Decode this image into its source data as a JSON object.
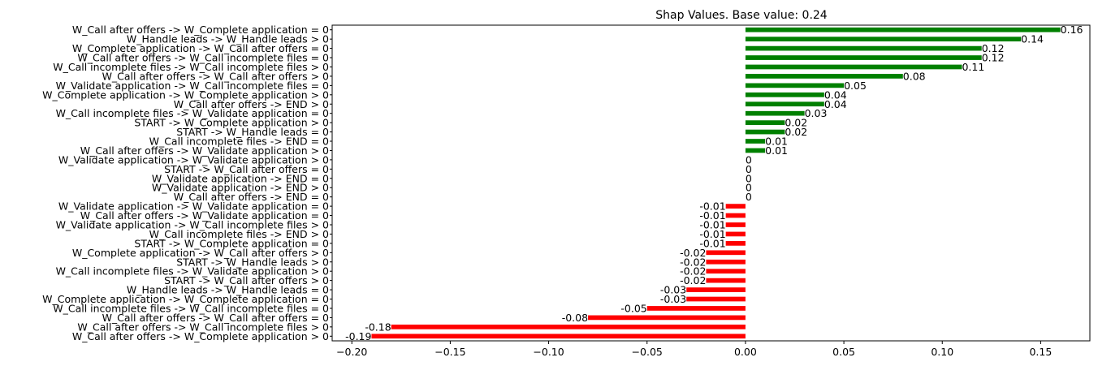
{
  "chart_data": {
    "type": "bar",
    "orientation": "horizontal",
    "title": "Shap Values. Base value: 0.24",
    "xlabel": "",
    "ylabel": "",
    "xlim": [
      -0.21,
      0.175
    ],
    "xticks": [
      -0.2,
      -0.15,
      -0.1,
      -0.05,
      0.0,
      0.05,
      0.1,
      0.15
    ],
    "xtick_labels": [
      "−0.20",
      "−0.15",
      "−0.10",
      "−0.05",
      "0.00",
      "0.05",
      "0.10",
      "0.15"
    ],
    "grid": false,
    "legend": "none",
    "colors": {
      "positive": "#008000",
      "negative": "#ff0000"
    },
    "bars": [
      {
        "label": "W_Call after offers -> W_Complete application = 0",
        "value": 0.16,
        "value_label": "0.16"
      },
      {
        "label": "W_Handle leads -> W_Handle leads > 0",
        "value": 0.14,
        "value_label": "0.14"
      },
      {
        "label": "W_Complete application -> W_Call after offers = 0",
        "value": 0.12,
        "value_label": "0.12"
      },
      {
        "label": "W_Call after offers -> W_Call incomplete files = 0",
        "value": 0.12,
        "value_label": "0.12"
      },
      {
        "label": "W_Call incomplete files -> W_Call incomplete files > 0",
        "value": 0.11,
        "value_label": "0.11"
      },
      {
        "label": "W_Call after offers -> W_Call after offers > 0",
        "value": 0.08,
        "value_label": "0.08"
      },
      {
        "label": "W_Validate application -> W_Call incomplete files = 0",
        "value": 0.05,
        "value_label": "0.05"
      },
      {
        "label": "W_Complete application -> W_Complete application > 0",
        "value": 0.04,
        "value_label": "0.04"
      },
      {
        "label": "W_Call after offers -> END > 0",
        "value": 0.04,
        "value_label": "0.04"
      },
      {
        "label": "W_Call incomplete files -> W_Validate application = 0",
        "value": 0.03,
        "value_label": "0.03"
      },
      {
        "label": "START -> W_Complete application > 0",
        "value": 0.02,
        "value_label": "0.02"
      },
      {
        "label": "START -> W_Handle leads = 0",
        "value": 0.02,
        "value_label": "0.02"
      },
      {
        "label": "W_Call incomplete files -> END = 0",
        "value": 0.01,
        "value_label": "0.01"
      },
      {
        "label": "W_Call after offers -> W_Validate application > 0",
        "value": 0.01,
        "value_label": "0.01"
      },
      {
        "label": "W_Validate application -> W_Validate application > 0",
        "value": 0,
        "value_label": "0"
      },
      {
        "label": "START -> W_Call after offers = 0",
        "value": 0,
        "value_label": "0"
      },
      {
        "label": "W_Validate application -> END = 0",
        "value": 0,
        "value_label": "0"
      },
      {
        "label": "W_Validate application -> END > 0",
        "value": 0,
        "value_label": "0"
      },
      {
        "label": "W_Call after offers -> END = 0",
        "value": 0,
        "value_label": "0"
      },
      {
        "label": "W_Validate application -> W_Validate application = 0",
        "value": -0.01,
        "value_label": "-0.01"
      },
      {
        "label": "W_Call after offers -> W_Validate application = 0",
        "value": -0.01,
        "value_label": "-0.01"
      },
      {
        "label": "W_Validate application -> W_Call incomplete files > 0",
        "value": -0.01,
        "value_label": "-0.01"
      },
      {
        "label": "W_Call incomplete files -> END > 0",
        "value": -0.01,
        "value_label": "-0.01"
      },
      {
        "label": "START -> W_Complete application = 0",
        "value": -0.01,
        "value_label": "-0.01"
      },
      {
        "label": "W_Complete application -> W_Call after offers > 0",
        "value": -0.02,
        "value_label": "-0.02"
      },
      {
        "label": "START -> W_Handle leads > 0",
        "value": -0.02,
        "value_label": "-0.02"
      },
      {
        "label": "W_Call incomplete files -> W_Validate application > 0",
        "value": -0.02,
        "value_label": "-0.02"
      },
      {
        "label": "START -> W_Call after offers > 0",
        "value": -0.02,
        "value_label": "-0.02"
      },
      {
        "label": "W_Handle leads -> W_Handle leads = 0",
        "value": -0.03,
        "value_label": "-0.03"
      },
      {
        "label": "W_Complete application -> W_Complete application = 0",
        "value": -0.03,
        "value_label": "-0.03"
      },
      {
        "label": "W_Call incomplete files -> W_Call incomplete files = 0",
        "value": -0.05,
        "value_label": "-0.05"
      },
      {
        "label": "W_Call after offers -> W_Call after offers = 0",
        "value": -0.08,
        "value_label": "-0.08"
      },
      {
        "label": "W_Call after offers -> W_Call incomplete files > 0",
        "value": -0.18,
        "value_label": "-0.18"
      },
      {
        "label": "W_Call after offers -> W_Complete application > 0",
        "value": -0.19,
        "value_label": "-0.19"
      }
    ]
  }
}
